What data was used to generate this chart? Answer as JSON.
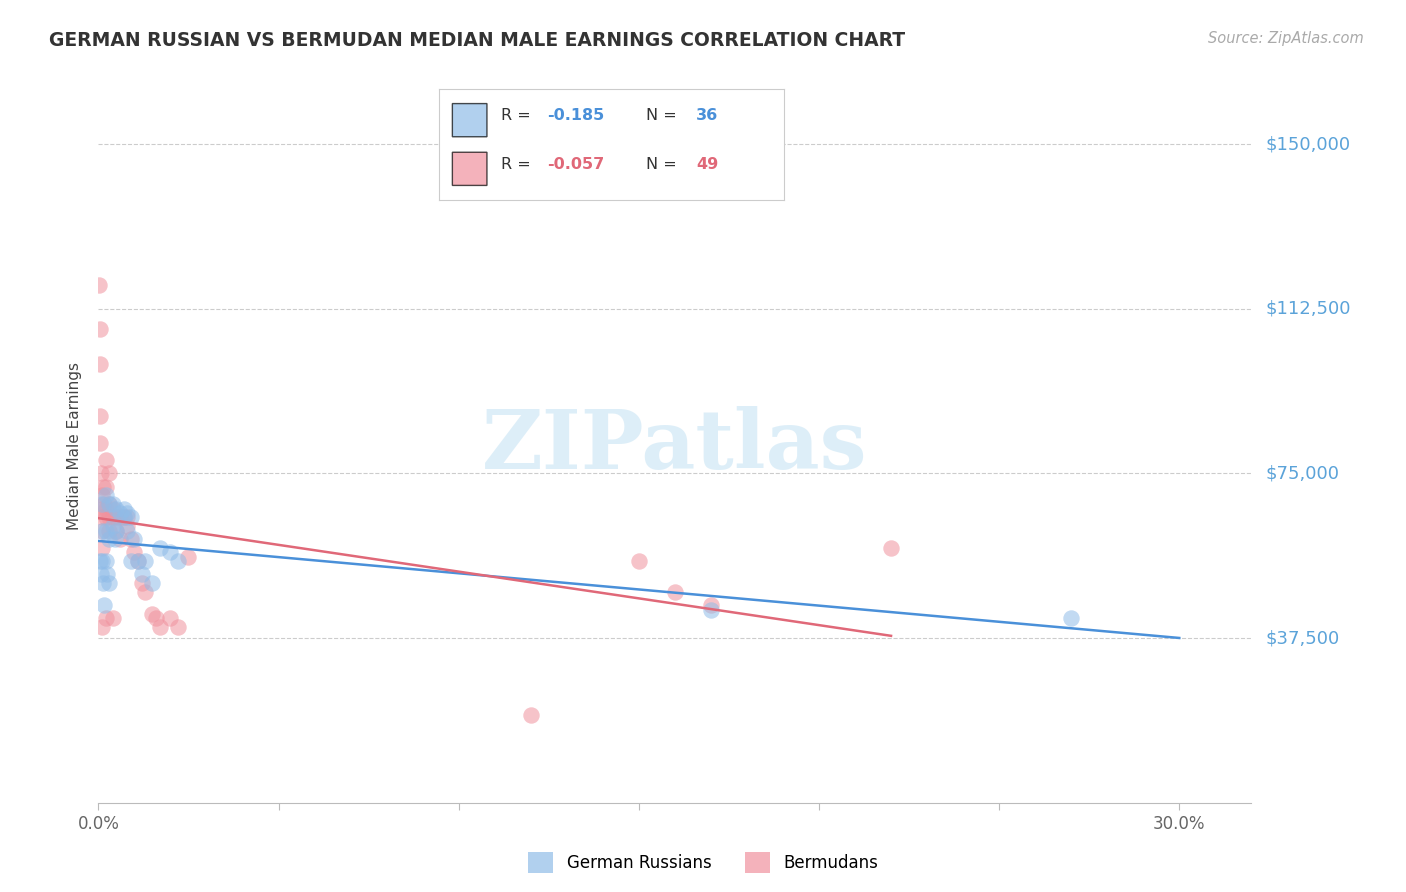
{
  "title": "GERMAN RUSSIAN VS BERMUDAN MEDIAN MALE EARNINGS CORRELATION CHART",
  "source": "Source: ZipAtlas.com",
  "ylabel": "Median Male Earnings",
  "ytick_labels": [
    "$37,500",
    "$75,000",
    "$112,500",
    "$150,000"
  ],
  "ytick_values": [
    37500,
    75000,
    112500,
    150000
  ],
  "ylim": [
    0,
    162500
  ],
  "xlim": [
    0.0,
    0.32
  ],
  "blue_color": "#90bce8",
  "pink_color": "#f0929e",
  "line_blue": "#4a90d9",
  "line_pink": "#e06878",
  "legend_blue_R": "-0.185",
  "legend_blue_N": "36",
  "legend_pink_R": "-0.057",
  "legend_pink_N": "49",
  "ytick_color": "#5ba3d9",
  "german_russian_x": [
    0.0005,
    0.0007,
    0.001,
    0.001,
    0.001,
    0.0012,
    0.0015,
    0.002,
    0.002,
    0.002,
    0.0025,
    0.003,
    0.003,
    0.003,
    0.004,
    0.004,
    0.0045,
    0.005,
    0.005,
    0.006,
    0.007,
    0.007,
    0.008,
    0.008,
    0.009,
    0.009,
    0.01,
    0.011,
    0.012,
    0.013,
    0.015,
    0.017,
    0.02,
    0.022,
    0.17,
    0.27
  ],
  "german_russian_y": [
    55000,
    52000,
    68000,
    62000,
    55000,
    50000,
    45000,
    70000,
    62000,
    55000,
    52000,
    68000,
    60000,
    50000,
    68000,
    63000,
    60000,
    67000,
    62000,
    66000,
    67000,
    65000,
    66000,
    62000,
    65000,
    55000,
    60000,
    55000,
    52000,
    55000,
    50000,
    58000,
    57000,
    55000,
    44000,
    42000
  ],
  "bermudan_x": [
    0.0002,
    0.0003,
    0.0004,
    0.0005,
    0.0005,
    0.0007,
    0.001,
    0.001,
    0.001,
    0.001,
    0.001,
    0.001,
    0.0012,
    0.0015,
    0.002,
    0.002,
    0.002,
    0.002,
    0.002,
    0.003,
    0.003,
    0.003,
    0.003,
    0.004,
    0.004,
    0.004,
    0.005,
    0.005,
    0.006,
    0.006,
    0.007,
    0.008,
    0.008,
    0.009,
    0.01,
    0.011,
    0.012,
    0.013,
    0.015,
    0.016,
    0.017,
    0.02,
    0.022,
    0.025,
    0.12,
    0.15,
    0.16,
    0.17,
    0.22
  ],
  "bermudan_y": [
    118000,
    108000,
    100000,
    88000,
    82000,
    75000,
    70000,
    67000,
    65000,
    62000,
    58000,
    40000,
    72000,
    68000,
    78000,
    72000,
    67000,
    65000,
    42000,
    75000,
    68000,
    65000,
    62000,
    67000,
    65000,
    42000,
    65000,
    62000,
    65000,
    60000,
    65000,
    65000,
    63000,
    60000,
    57000,
    55000,
    50000,
    48000,
    43000,
    42000,
    40000,
    42000,
    40000,
    56000,
    20000,
    55000,
    48000,
    45000,
    58000
  ]
}
